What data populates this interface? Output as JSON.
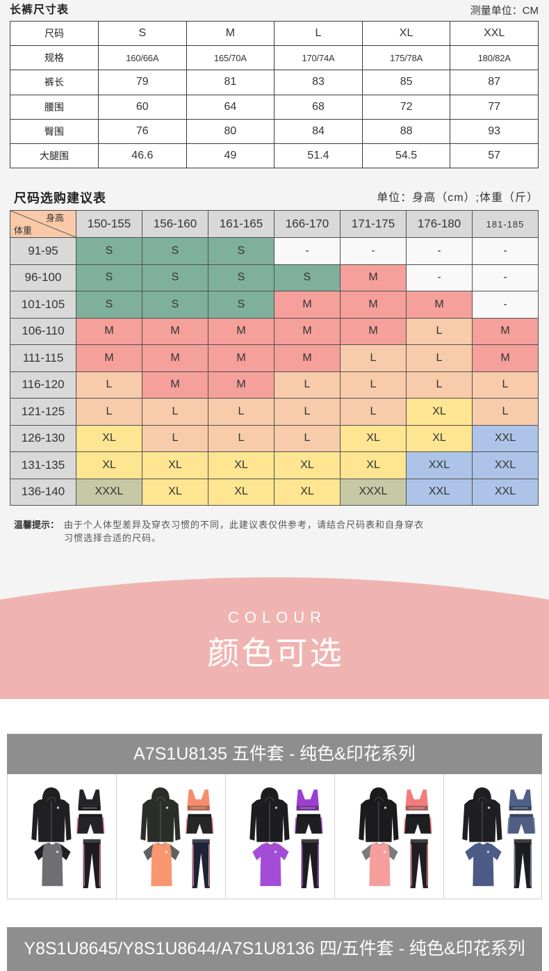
{
  "pants_size_chart": {
    "title": "长裤尺寸表",
    "unit": "测量单位：CM",
    "rows": [
      {
        "label": "尺码",
        "values": [
          "S",
          "M",
          "L",
          "XL",
          "XXL"
        ]
      },
      {
        "label": "规格",
        "values": [
          "160/66A",
          "165/70A",
          "170/74A",
          "175/78A",
          "180/82A"
        ]
      },
      {
        "label": "裤长",
        "values": [
          "79",
          "81",
          "83",
          "85",
          "87"
        ]
      },
      {
        "label": "腰围",
        "values": [
          "60",
          "64",
          "68",
          "72",
          "77"
        ]
      },
      {
        "label": "臀围",
        "values": [
          "76",
          "80",
          "84",
          "88",
          "93"
        ]
      },
      {
        "label": "大腿围",
        "values": [
          "46.6",
          "49",
          "51.4",
          "54.5",
          "57"
        ]
      }
    ]
  },
  "size_recommendation": {
    "title": "尺码选购建议表",
    "unit": "单位：身高（cm）;体重（斤）",
    "corner_top": "身高",
    "corner_bottom": "体重",
    "height_ranges": [
      "150-155",
      "156-160",
      "161-165",
      "166-170",
      "171-175",
      "176-180",
      "181-185"
    ],
    "rows": [
      {
        "weight": "91-95",
        "sizes": [
          "S",
          "S",
          "S",
          "-",
          "-",
          "-",
          "-"
        ]
      },
      {
        "weight": "96-100",
        "sizes": [
          "S",
          "S",
          "S",
          "S",
          "M",
          "-",
          "-"
        ]
      },
      {
        "weight": "101-105",
        "sizes": [
          "S",
          "S",
          "S",
          "M",
          "M",
          "M",
          "-"
        ]
      },
      {
        "weight": "106-110",
        "sizes": [
          "M",
          "M",
          "M",
          "M",
          "M",
          "L",
          "M"
        ]
      },
      {
        "weight": "111-115",
        "sizes": [
          "M",
          "M",
          "M",
          "M",
          "L",
          "L",
          "M"
        ]
      },
      {
        "weight": "116-120",
        "sizes": [
          "L",
          "M",
          "M",
          "L",
          "L",
          "L",
          "L"
        ]
      },
      {
        "weight": "121-125",
        "sizes": [
          "L",
          "L",
          "L",
          "L",
          "L",
          "XL",
          "L"
        ]
      },
      {
        "weight": "126-130",
        "sizes": [
          "XL",
          "L",
          "L",
          "L",
          "XL",
          "XL",
          "XXL"
        ]
      },
      {
        "weight": "131-135",
        "sizes": [
          "XL",
          "XL",
          "XL",
          "XL",
          "XL",
          "XXL",
          "XXL"
        ]
      },
      {
        "weight": "136-140",
        "sizes": [
          "XXXL",
          "XL",
          "XL",
          "XL",
          "XXXL",
          "XXL",
          "XXL"
        ]
      }
    ],
    "size_colors": {
      "S": "#7fb09b",
      "M": "#f5a09b",
      "L": "#f8cbaa",
      "XL": "#fde591",
      "XXL": "#adc4e8",
      "XXXL": "#c6c9a6",
      "-": "#f9f9f9"
    },
    "header_color": "#d9d9d9",
    "corner_color": "#f9c9a8"
  },
  "note": {
    "label": "温馨提示：",
    "lines": [
      "由于个人体型差异及穿衣习惯的不同，此建议表仅供参考，请结合尺码表和自身穿衣",
      "习惯选择合适的尺码。"
    ]
  },
  "colour_banner": {
    "en": "COLOUR",
    "zh": "颜色可选",
    "color": "#efb4b1"
  },
  "product_sets": [
    {
      "title": "A7S1U8135 五件套 - 纯色&印花系列",
      "pieces": [
        "hoodie-jacket-icon",
        "sports-bra-icon",
        "shorts-icon",
        "t-shirt-icon",
        "leggings-icon"
      ],
      "variants": [
        {
          "jacket": "#202023",
          "bra": "#242428",
          "shorts": "#242428",
          "tee": "#6f6f73",
          "tee_sleeves": "#202022",
          "leggings": "#1d1d21",
          "accent": "#e9708f"
        },
        {
          "jacket": "#2b2e28",
          "bra": "#f68c6a",
          "shorts": "#262626",
          "tee": "#f8976f",
          "tee_sleeves": "#606060",
          "leggings": "#1f2336",
          "accent": "#f28ba0"
        },
        {
          "jacket": "#1d1d20",
          "bra": "#9b40d1",
          "shorts": "#1f1f22",
          "tee": "#a44cd8",
          "tee_sleeves": "#a44cd8",
          "leggings": "#1d1d20",
          "accent": "#a44cd8"
        },
        {
          "jacket": "#1b1b1e",
          "bra": "#f27c7c",
          "shorts": "#1f1f22",
          "tee": "#f59e9b",
          "tee_sleeves": "#7a7a7e",
          "leggings": "#1f1f23",
          "accent": "#f27c7c"
        },
        {
          "jacket": "#1f1f23",
          "bra": "#4e5f89",
          "shorts": "#4f5f84",
          "tee": "#4b5a86",
          "tee_sleeves": "#4b5a86",
          "leggings": "#1d1d21",
          "accent": "#7d89a8"
        }
      ]
    },
    {
      "title": "Y8S1U8645/Y8S1U8644/A7S1U8136 四/五件套 - 纯色&印花系列"
    }
  ]
}
